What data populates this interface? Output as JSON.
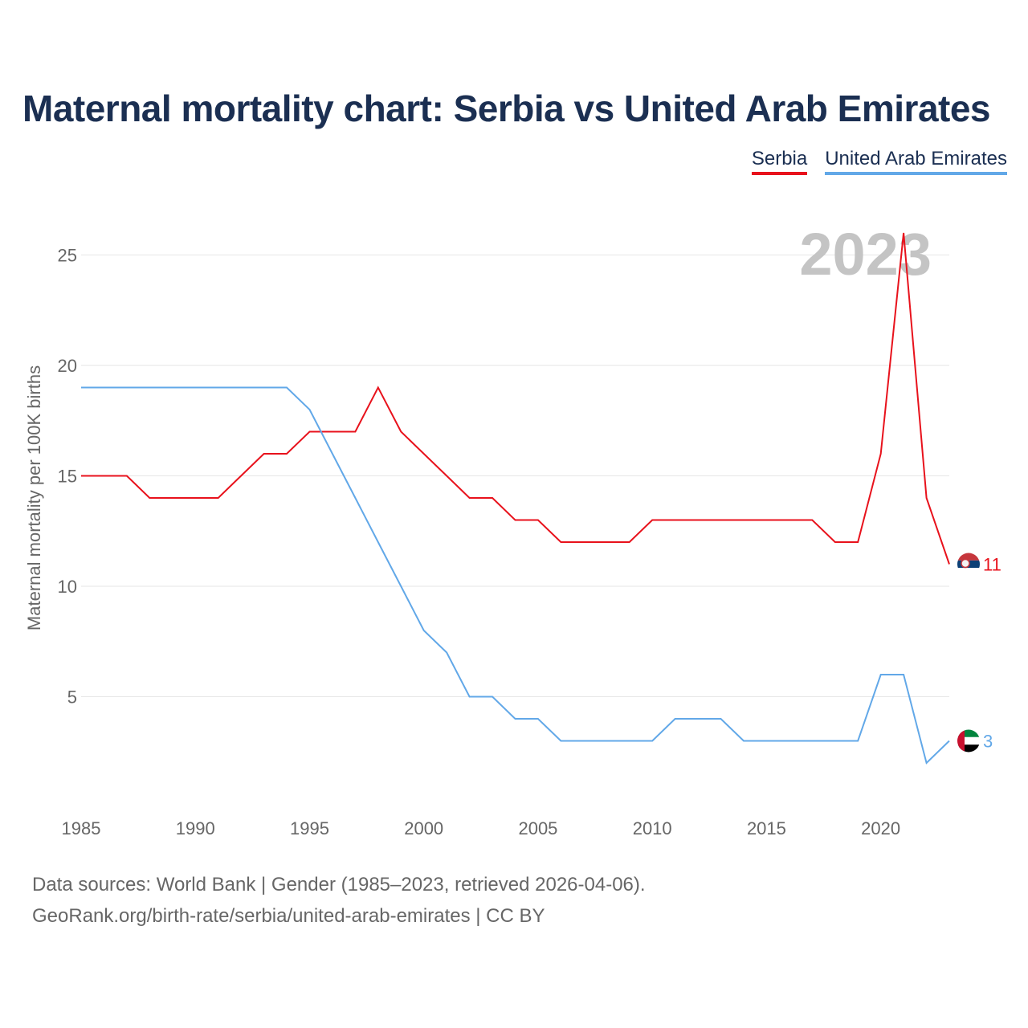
{
  "title": "Maternal mortality chart: Serbia vs United Arab Emirates",
  "legend": {
    "serbia": "Serbia",
    "uae": "United Arab Emirates"
  },
  "footer": {
    "line1": "Data sources: World Bank | Gender (1985–2023, retrieved 2026-04-06).",
    "line2": "GeoRank.org/birth-rate/serbia/united-arab-emirates | CC BY"
  },
  "chart_data": {
    "type": "line",
    "title": "Maternal mortality chart: Serbia vs United Arab Emirates",
    "ylabel": "Maternal mortality per 100K births",
    "xlabel": "",
    "year_label": "2023",
    "xlim": [
      1985,
      2023
    ],
    "ylim": [
      0,
      26
    ],
    "xticks": [
      1985,
      1990,
      1995,
      2000,
      2005,
      2010,
      2015,
      2020
    ],
    "yticks": [
      5,
      10,
      15,
      20,
      25
    ],
    "x": [
      1985,
      1986,
      1987,
      1988,
      1989,
      1990,
      1991,
      1992,
      1993,
      1994,
      1995,
      1996,
      1997,
      1998,
      1999,
      2000,
      2001,
      2002,
      2003,
      2004,
      2005,
      2006,
      2007,
      2008,
      2009,
      2010,
      2011,
      2012,
      2013,
      2014,
      2015,
      2016,
      2017,
      2018,
      2019,
      2020,
      2021,
      2022,
      2023
    ],
    "series": [
      {
        "name": "Serbia",
        "color": "#e8121c",
        "end_label": "11",
        "values": [
          15,
          15,
          15,
          14,
          14,
          14,
          14,
          15,
          16,
          16,
          17,
          17,
          17,
          19,
          17,
          16,
          15,
          14,
          14,
          13,
          13,
          12,
          12,
          12,
          12,
          13,
          13,
          13,
          13,
          13,
          13,
          13,
          13,
          12,
          12,
          16,
          26,
          14,
          11
        ]
      },
      {
        "name": "United Arab Emirates",
        "color": "#62a8e8",
        "end_label": "3",
        "values": [
          19,
          19,
          19,
          19,
          19,
          19,
          19,
          19,
          19,
          19,
          18,
          16,
          14,
          12,
          10,
          8,
          7,
          5,
          5,
          4,
          4,
          3,
          3,
          3,
          3,
          3,
          4,
          4,
          4,
          3,
          3,
          3,
          3,
          3,
          3,
          6,
          6,
          2,
          3
        ]
      }
    ]
  }
}
